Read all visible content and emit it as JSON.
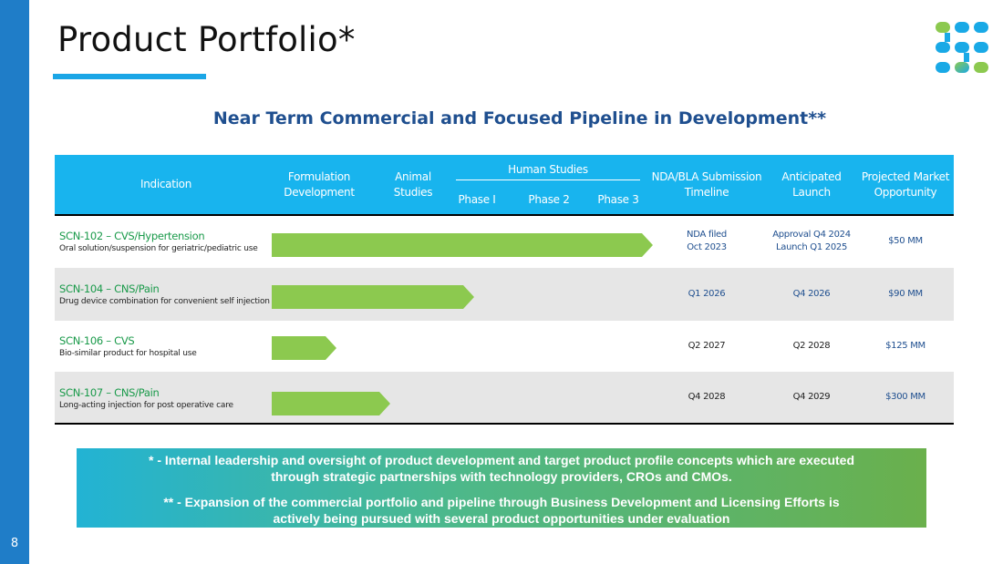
{
  "slide": {
    "page_number": "8",
    "title": "Product Portfolio*",
    "subtitle": "Near Term Commercial and Focused Pipeline in Development**"
  },
  "colors": {
    "accent_blue": "#1f7dc8",
    "header_blue": "#18b4ee",
    "bar_green": "#8cc94f",
    "product_green": "#1a9a4a",
    "value_blue": "#1f4f8f"
  },
  "table": {
    "headers": {
      "indication": "Indication",
      "formulation_1": "Formulation",
      "formulation_2": "Development",
      "animal_1": "Animal",
      "animal_2": "Studies",
      "human_studies": "Human Studies",
      "phase1": "Phase I",
      "phase2": "Phase 2",
      "phase3": "Phase 3",
      "nda_1": "NDA/BLA Submission",
      "nda_2": "Timeline",
      "launch_1": "Anticipated",
      "launch_2": "Launch",
      "market_1": "Projected Market",
      "market_2": "Opportunity"
    },
    "rows": [
      {
        "name": "SCN-102 – CVS/Hypertension",
        "desc": "Oral solution/suspension for geriatric/pediatric use",
        "nda_1": "NDA filed",
        "nda_2": "Oct 2023",
        "launch_1": "Approval Q4 2024",
        "launch_2": "Launch Q1 2025",
        "market": "$50 MM",
        "progress_pct": 100
      },
      {
        "name": "SCN-104 – CNS/Pain",
        "desc": "Drug device combination for convenient self injection",
        "nda": "Q1 2026",
        "launch": "Q4 2026",
        "market": "$90 MM",
        "progress_pct": 53
      },
      {
        "name": "SCN-106 – CVS",
        "desc": "Bio-similar product for hospital use",
        "nda": "Q2 2027",
        "launch": "Q2 2028",
        "market": "$125 MM",
        "progress_pct": 17
      },
      {
        "name": "SCN-107 – CNS/Pain",
        "desc": "Long-acting injection for post operative care",
        "nda": "Q4 2028",
        "launch": "Q4 2029",
        "market": "$300 MM",
        "progress_pct": 31
      }
    ]
  },
  "footnotes": {
    "note1_line1": "* - Internal leadership and oversight of product development and target product profile concepts which are executed",
    "note1_line2": "through strategic partnerships with technology providers, CROs and CMOs.",
    "note2_line1": "** - Expansion of the commercial portfolio and pipeline through Business Development and Licensing Efforts is",
    "note2_line2": "actively being pursued with several product opportunities under evaluation"
  }
}
